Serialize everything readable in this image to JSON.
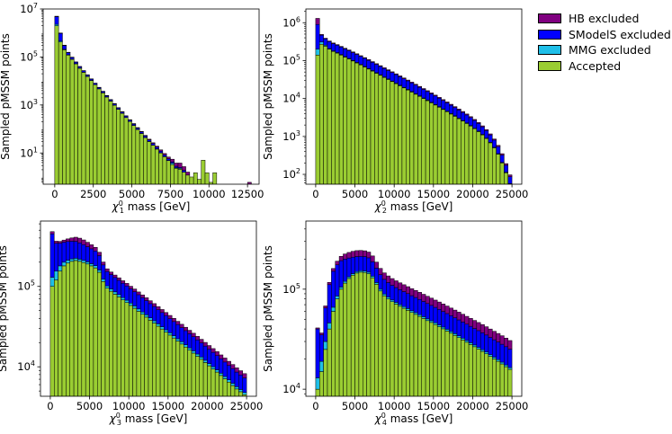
{
  "legend": {
    "items": [
      {
        "label": "HB excluded",
        "color": "#800080"
      },
      {
        "label": "SModelS excluded",
        "color": "#0000ff"
      },
      {
        "label": "MMG excluded",
        "color": "#1fbfe8"
      },
      {
        "label": "Accepted",
        "color": "#9acd32"
      }
    ]
  },
  "chart_data": [
    {
      "type": "histogram",
      "stacked": true,
      "ylabel": "Sampled pMSSM points",
      "xlabel": "mass [GeV]",
      "xlabel_symbol": "χ",
      "xlabel_sub": "1",
      "xlabel_sup": "0",
      "yscale": "log",
      "xlim": [
        -750,
        13250
      ],
      "ylim": [
        0.5,
        10000000
      ],
      "xticks": [
        0,
        2500,
        5000,
        7500,
        10000,
        12500
      ],
      "yticks": [
        {
          "value": 10,
          "base": "10",
          "exp": "1"
        },
        {
          "value": 1000,
          "base": "10",
          "exp": "3"
        },
        {
          "value": 100000,
          "base": "10",
          "exp": "5"
        },
        {
          "value": 10000000,
          "base": "10",
          "exp": "7"
        }
      ],
      "bin_start": 0,
      "bin_width": 250,
      "accepted": [
        2000000,
        420000,
        200000,
        120000,
        80000,
        52000,
        34000,
        23000,
        15500,
        10500,
        7000,
        4700,
        3200,
        2150,
        1450,
        980,
        660,
        450,
        300,
        205,
        140,
        95,
        65,
        44,
        30,
        21,
        14.5,
        10,
        7,
        4.8,
        3.3,
        2.3,
        2.1,
        1.6,
        1.2,
        1.0,
        1.5,
        0.8,
        5.0,
        1.5,
        0.6,
        1.5,
        0,
        0,
        0,
        0,
        0,
        0,
        0,
        0,
        0,
        0
      ],
      "mmg": [
        300000,
        40000,
        10000,
        3000,
        1200,
        500,
        250,
        150,
        90,
        60,
        40,
        25,
        18,
        12,
        8,
        5,
        3.5,
        2.5,
        1.7,
        1.2,
        0.8,
        0.6,
        0.4,
        0.3,
        0.2,
        0.2,
        0.5,
        0.2,
        0.1,
        0.1,
        0.5,
        0.1,
        0.2,
        0,
        0,
        0,
        0,
        0,
        0,
        0,
        0,
        0,
        0,
        0,
        0,
        0,
        0,
        0,
        0,
        0,
        0,
        0
      ],
      "smodels": [
        2500000,
        500000,
        90000,
        30000,
        15000,
        8500,
        5300,
        3400,
        2200,
        1450,
        900,
        600,
        420,
        280,
        190,
        130,
        90,
        60,
        42,
        28,
        20,
        14,
        10,
        7,
        5,
        3.5,
        2.5,
        1.8,
        1.2,
        0.9,
        0.5,
        0.4,
        0.2,
        0.3,
        0,
        0,
        0,
        0,
        0,
        0,
        0,
        0,
        0,
        0,
        0,
        0,
        0,
        0,
        0,
        0,
        0,
        0
      ],
      "hb": [
        200000,
        40000,
        12000,
        4500,
        2500,
        1500,
        900,
        600,
        400,
        280,
        200,
        140,
        95,
        65,
        45,
        32,
        24,
        17,
        12,
        9,
        7,
        5,
        4,
        3,
        2.5,
        2,
        1.8,
        1.5,
        1.2,
        1.0,
        1.2,
        1.0,
        1.3,
        0.8,
        0.4,
        0,
        0,
        0,
        0,
        0,
        0,
        0,
        0,
        0,
        0,
        0,
        0,
        0,
        0,
        0,
        0.6,
        0
      ]
    },
    {
      "type": "histogram",
      "stacked": true,
      "ylabel": "Sampled pMSSM points",
      "xlabel": "mass [GeV]",
      "xlabel_symbol": "χ",
      "xlabel_sub": "2",
      "xlabel_sup": "0",
      "yscale": "log",
      "xlim": [
        -1250,
        26250
      ],
      "ylim": [
        55,
        2300000
      ],
      "xticks": [
        0,
        5000,
        10000,
        15000,
        20000,
        25000
      ],
      "yticks": [
        {
          "value": 100,
          "base": "10",
          "exp": "2"
        },
        {
          "value": 1000,
          "base": "10",
          "exp": "3"
        },
        {
          "value": 10000,
          "base": "10",
          "exp": "4"
        },
        {
          "value": 100000,
          "base": "10",
          "exp": "5"
        },
        {
          "value": 1000000,
          "base": "10",
          "exp": "6"
        }
      ],
      "bin_start": 0,
      "bin_width": 500,
      "accepted": [
        140000,
        270000,
        240000,
        200000,
        175000,
        158000,
        140000,
        124000,
        111000,
        98000,
        87000,
        77000,
        68000,
        60000,
        53000,
        46500,
        41000,
        36000,
        31800,
        28000,
        24700,
        21700,
        19100,
        16800,
        14800,
        13000,
        11400,
        10000,
        8800,
        7700,
        6750,
        5900,
        5150,
        4500,
        3900,
        3400,
        2950,
        2550,
        2200,
        1880,
        1600,
        1340,
        1100,
        880,
        680,
        500,
        340,
        200,
        110,
        55
      ],
      "mmg": [
        60000,
        40000,
        15000,
        8000,
        6000,
        5000,
        4500,
        4000,
        3500,
        3100,
        2800,
        2500,
        2200,
        2000,
        1750,
        1550,
        1400,
        1250,
        1100,
        970,
        860,
        760,
        670,
        590,
        520,
        460,
        400,
        355,
        310,
        270,
        235,
        205,
        180,
        155,
        135,
        117,
        100,
        87,
        75,
        64,
        54,
        45,
        37,
        30,
        24,
        18,
        13,
        8,
        4,
        2
      ],
      "smodels": [
        700000,
        160000,
        120000,
        110000,
        100000,
        92000,
        84000,
        76000,
        69000,
        62000,
        56000,
        50000,
        45000,
        40000,
        35500,
        31500,
        28000,
        24800,
        22000,
        19500,
        17300,
        15300,
        13500,
        11900,
        10500,
        9200,
        8100,
        7100,
        6200,
        5400,
        4700,
        4100,
        3550,
        3050,
        2650,
        2280,
        1950,
        1670,
        1420,
        1200,
        1000,
        820,
        660,
        520,
        395,
        285,
        190,
        115,
        60,
        30
      ],
      "hb": [
        400000,
        20000,
        15000,
        12000,
        11000,
        10000,
        9000,
        8200,
        7400,
        6700,
        6000,
        5400,
        4900,
        4400,
        3950,
        3550,
        3200,
        2850,
        2550,
        2300,
        2050,
        1830,
        1630,
        1450,
        1290,
        1150,
        1020,
        900,
        800,
        710,
        625,
        550,
        485,
        425,
        375,
        325,
        285,
        248,
        214,
        183,
        155,
        130,
        108,
        88,
        70,
        54,
        40,
        28,
        18,
        10
      ]
    },
    {
      "type": "histogram",
      "stacked": true,
      "ylabel": "Sampled pMSSM points",
      "xlabel": "mass [GeV]",
      "xlabel_symbol": "χ",
      "xlabel_sub": "3",
      "xlabel_sup": "0",
      "yscale": "log",
      "xlim": [
        -1250,
        26250
      ],
      "ylim": [
        4300,
        650000
      ],
      "xticks": [
        0,
        5000,
        10000,
        15000,
        20000,
        25000
      ],
      "yticks": [
        {
          "value": 10000,
          "base": "10",
          "exp": "4"
        },
        {
          "value": 100000,
          "base": "10",
          "exp": "5"
        }
      ],
      "bin_start": 0,
      "bin_width": 500,
      "accepted": [
        100000,
        120000,
        155000,
        180000,
        195000,
        205000,
        210000,
        205000,
        198000,
        190000,
        180000,
        170000,
        150000,
        115000,
        95000,
        87000,
        80000,
        74000,
        68000,
        63000,
        58000,
        53500,
        49000,
        45000,
        41500,
        38000,
        35000,
        32000,
        29500,
        27000,
        24800,
        22800,
        20900,
        19200,
        17600,
        16100,
        14800,
        13500,
        12400,
        11300,
        10300,
        9400,
        8600,
        7800,
        7100,
        6450,
        5850,
        5300,
        4900,
        4500
      ],
      "mmg": [
        30000,
        35000,
        25000,
        20000,
        17000,
        15000,
        14000,
        13000,
        12500,
        12000,
        11500,
        11000,
        10000,
        8000,
        6500,
        6000,
        5500,
        5100,
        4700,
        4350,
        4000,
        3700,
        3400,
        3100,
        2850,
        2600,
        2400,
        2200,
        2000,
        1850,
        1700,
        1550,
        1420,
        1300,
        1190,
        1090,
        1000,
        910,
        830,
        760,
        690,
        630,
        575,
        520,
        475,
        430,
        390,
        355,
        320,
        290
      ],
      "smodels": [
        320000,
        190000,
        165000,
        155000,
        150000,
        145000,
        140000,
        130000,
        120000,
        110000,
        102000,
        95000,
        82000,
        62000,
        52000,
        47500,
        43500,
        40000,
        36800,
        34000,
        31200,
        28800,
        26500,
        24300,
        22300,
        20500,
        18800,
        17200,
        15800,
        14500,
        13300,
        12200,
        11200,
        10250,
        9400,
        8600,
        7900,
        7200,
        6600,
        6050,
        5550,
        5100,
        4650,
        4250,
        3900,
        3550,
        3250,
        2950,
        2700,
        2480
      ],
      "hb": [
        30000,
        20000,
        18000,
        22000,
        28000,
        36000,
        45000,
        50000,
        48000,
        42000,
        36000,
        30000,
        24000,
        16000,
        12000,
        10500,
        9500,
        8800,
        8200,
        7700,
        7200,
        6800,
        6400,
        6000,
        5600,
        5250,
        4900,
        4600,
        4300,
        4000,
        3750,
        3500,
        3250,
        3050,
        2850,
        2650,
        2450,
        2300,
        2150,
        2000,
        1850,
        1720,
        1600,
        1490,
        1380,
        1280,
        1190,
        1100,
        1020,
        950
      ]
    },
    {
      "type": "histogram",
      "stacked": true,
      "ylabel": "Sampled pMSSM points",
      "xlabel": "mass [GeV]",
      "xlabel_symbol": "χ",
      "xlabel_sub": "4",
      "xlabel_sup": "0",
      "yscale": "log",
      "xlim": [
        -1250,
        26250
      ],
      "ylim": [
        8500,
        480000
      ],
      "xticks": [
        0,
        5000,
        10000,
        15000,
        20000,
        25000
      ],
      "yticks": [
        {
          "value": 10000,
          "base": "10",
          "exp": "4"
        },
        {
          "value": 100000,
          "base": "10",
          "exp": "5"
        }
      ],
      "bin_start": 0,
      "bin_width": 500,
      "accepted": [
        10000,
        15000,
        25000,
        40000,
        60000,
        80000,
        100000,
        115000,
        128000,
        138000,
        145000,
        148000,
        147000,
        143000,
        130000,
        112000,
        96000,
        86000,
        80000,
        75000,
        71000,
        67500,
        64500,
        61500,
        58500,
        56000,
        53500,
        51000,
        48500,
        46500,
        44300,
        42200,
        40200,
        38200,
        36300,
        34500,
        32800,
        31100,
        29500,
        28000,
        26600,
        25200,
        23900,
        22600,
        21300,
        20100,
        19000,
        17900,
        16800,
        15800
      ],
      "mmg": [
        3000,
        4000,
        5000,
        6000,
        6000,
        5500,
        5000,
        5000,
        5000,
        5000,
        5000,
        5000,
        5000,
        5000,
        5000,
        4500,
        3900,
        3500,
        3200,
        3000,
        2800,
        2700,
        2600,
        2500,
        2400,
        2300,
        2200,
        2100,
        2000,
        1900,
        1800,
        1720,
        1640,
        1560,
        1480,
        1410,
        1340,
        1270,
        1210,
        1150,
        1090,
        1030,
        980,
        930,
        880,
        830,
        790,
        750,
        710,
        670
      ],
      "smodels": [
        27000,
        16000,
        35000,
        65000,
        85000,
        90000,
        88000,
        80000,
        72000,
        66000,
        62000,
        60000,
        60000,
        58000,
        53000,
        46000,
        40000,
        36000,
        33500,
        31500,
        30000,
        28700,
        27500,
        26400,
        25300,
        24300,
        23300,
        22300,
        21400,
        20500,
        19700,
        18900,
        18100,
        17300,
        16600,
        15900,
        15200,
        14600,
        14000,
        13400,
        12800,
        12300,
        11800,
        11300,
        10800,
        10300,
        9900,
        9500,
        9100,
        8700
      ],
      "hb": [
        1000,
        1500,
        3000,
        6000,
        10000,
        15000,
        20000,
        25000,
        28000,
        30000,
        31000,
        31000,
        30000,
        29000,
        27000,
        24000,
        21500,
        20000,
        19000,
        18200,
        17500,
        16800,
        16200,
        15600,
        15000,
        14500,
        14000,
        13500,
        13000,
        12500,
        12000,
        11600,
        11200,
        10800,
        10400,
        10000,
        9600,
        9200,
        8800,
        8500,
        8200,
        7900,
        7600,
        7300,
        7000,
        6700,
        6400,
        6100,
        5800,
        5500
      ]
    }
  ]
}
